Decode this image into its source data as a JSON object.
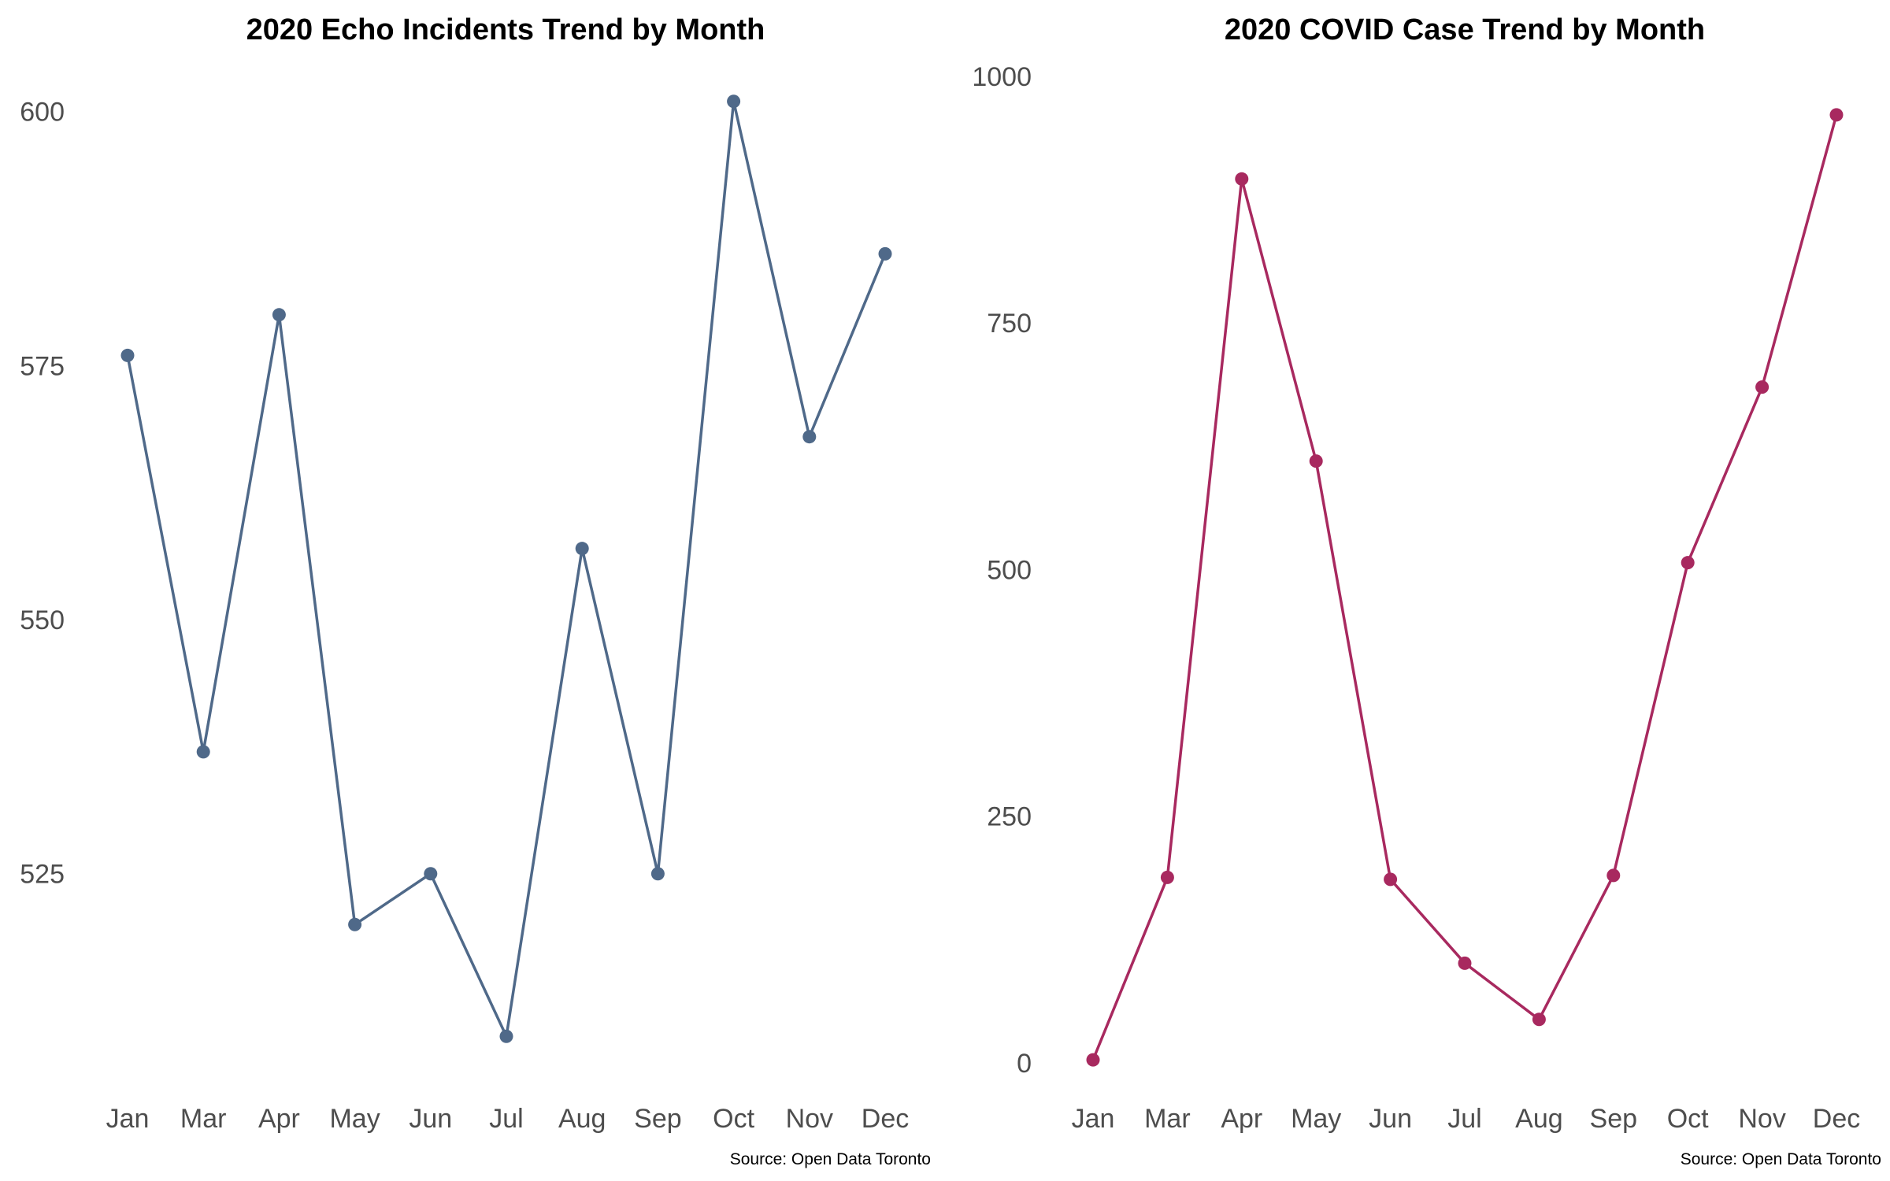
{
  "chart_data": [
    {
      "type": "line",
      "title": "2020 Echo Incidents Trend by Month",
      "caption": "Source: Open Data Toronto",
      "xlabel": "",
      "ylabel": "",
      "categories": [
        "Jan",
        "Mar",
        "Apr",
        "May",
        "Jun",
        "Jul",
        "Aug",
        "Sep",
        "Oct",
        "Nov",
        "Dec"
      ],
      "values": [
        576,
        537,
        580,
        520,
        525,
        509,
        557,
        525,
        601,
        568,
        586
      ],
      "ylim": [
        506,
        604
      ],
      "yticks": [
        525,
        550,
        575,
        600
      ],
      "grid": false,
      "legend": "none",
      "color": "#4f6989"
    },
    {
      "type": "line",
      "title": "2020 COVID Case Trend by Month",
      "caption": "Source: Open Data Toronto",
      "xlabel": "",
      "ylabel": "",
      "categories": [
        "Jan",
        "Mar",
        "Apr",
        "May",
        "Jun",
        "Jul",
        "Aug",
        "Sep",
        "Oct",
        "Nov",
        "Dec"
      ],
      "values": [
        3,
        188,
        896,
        610,
        186,
        101,
        44,
        190,
        507,
        685,
        961
      ],
      "ylim": [
        -40,
        1000
      ],
      "yticks": [
        0,
        250,
        500,
        750,
        1000
      ],
      "grid": false,
      "legend": "none",
      "color": "#a8295f"
    }
  ]
}
